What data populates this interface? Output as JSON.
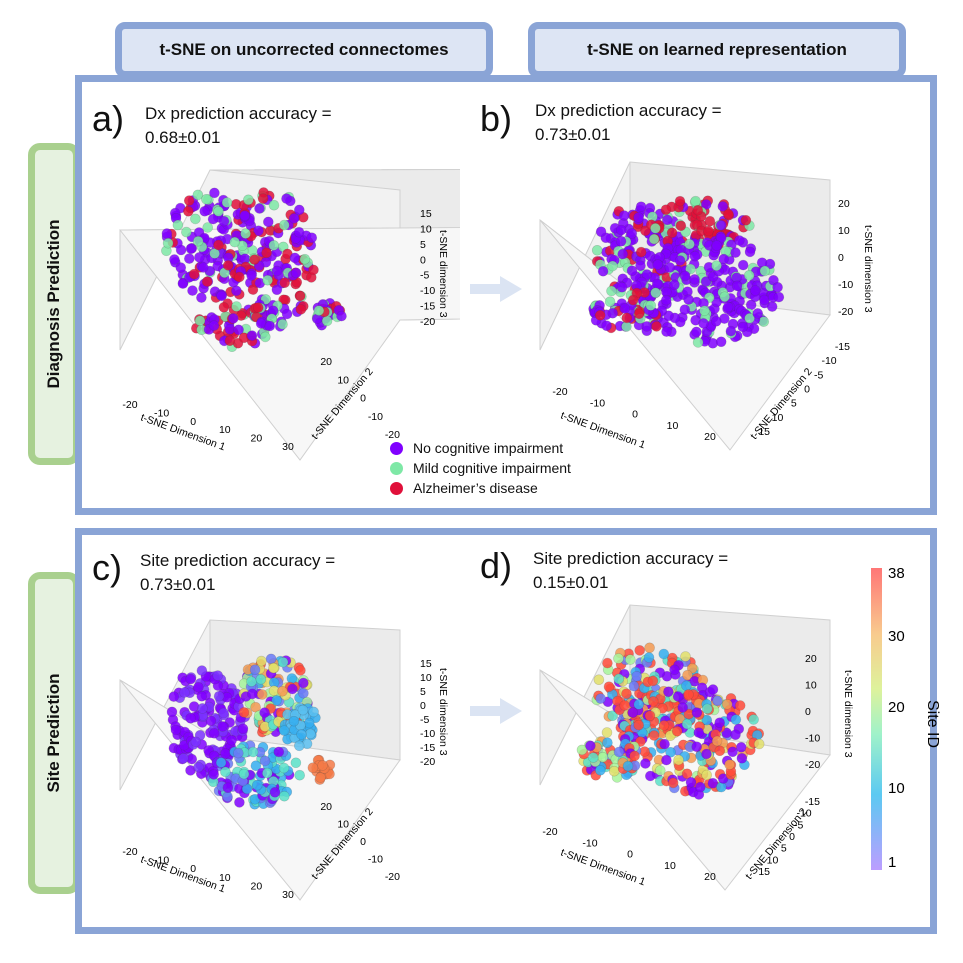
{
  "columns": {
    "left": "t-SNE on uncorrected connectomes",
    "right": "t-SNE on learned representation"
  },
  "rows": {
    "top": "Diagnosis Prediction",
    "bottom": "Site Prediction"
  },
  "panels": {
    "a": {
      "letter": "a)",
      "line1": "Dx prediction accuracy =",
      "line2": "0.68±0.01",
      "xlabel": "t-SNE Dimension 1",
      "ylabel": "t-SNE Dimension 2",
      "zlabel": "t-SNE dimension 3",
      "xticks": [
        "-20",
        "-10",
        "0",
        "10",
        "20",
        "30"
      ],
      "yticks": [
        "-20",
        "-10",
        "0",
        "10",
        "20"
      ],
      "zticks": [
        "15",
        "10",
        "5",
        "0",
        "-5",
        "-10",
        "-15",
        "-20"
      ]
    },
    "b": {
      "letter": "b)",
      "line1": "Dx prediction accuracy =",
      "line2": "0.73±0.01",
      "xlabel": "t-SNE Dimension 1",
      "ylabel": "t-SNE Dimension 2",
      "zlabel": "t-SNE dimension 3",
      "xticks": [
        "-20",
        "-10",
        "0",
        "10",
        "20"
      ],
      "yticks": [
        "-15",
        "-10",
        "-5",
        "0",
        "5",
        "10",
        "15"
      ],
      "zticks": [
        "20",
        "10",
        "0",
        "-10",
        "-20"
      ]
    },
    "c": {
      "letter": "c)",
      "line1": "Site prediction accuracy =",
      "line2": "0.73±0.01",
      "xlabel": "t-SNE Dimension 1",
      "ylabel": "t-SNE Dimension 2",
      "zlabel": "t-SNE dimension 3",
      "xticks": [
        "-20",
        "-10",
        "0",
        "10",
        "20",
        "30"
      ],
      "yticks": [
        "-20",
        "-10",
        "0",
        "10",
        "20"
      ],
      "zticks": [
        "15",
        "10",
        "5",
        "0",
        "-5",
        "-10",
        "-15",
        "-20"
      ]
    },
    "d": {
      "letter": "d)",
      "line1": "Site prediction accuracy =",
      "line2": "0.15±0.01",
      "xlabel": "t-SNE Dimension 1",
      "ylabel": "t-SNE Dimension 2",
      "zlabel": "t-SNE dimension 3",
      "xticks": [
        "-20",
        "-10",
        "0",
        "10",
        "20"
      ],
      "yticks": [
        "-15",
        "-10",
        "-5",
        "0",
        "5",
        "10",
        "15"
      ],
      "zticks": [
        "20",
        "10",
        "0",
        "-10",
        "-20"
      ]
    }
  },
  "legend": [
    {
      "label": "No cognitive impairment",
      "color": "#8000ff"
    },
    {
      "label": "Mild cognitive impairment",
      "color": "#7ee8a6"
    },
    {
      "label": "Alzheimer’s disease",
      "color": "#e0103a"
    }
  ],
  "colorbar": {
    "title": "Site ID",
    "ticks": [
      "38",
      "30",
      "20",
      "10",
      "1"
    ]
  },
  "arrow_color": "#dbe4f3"
}
